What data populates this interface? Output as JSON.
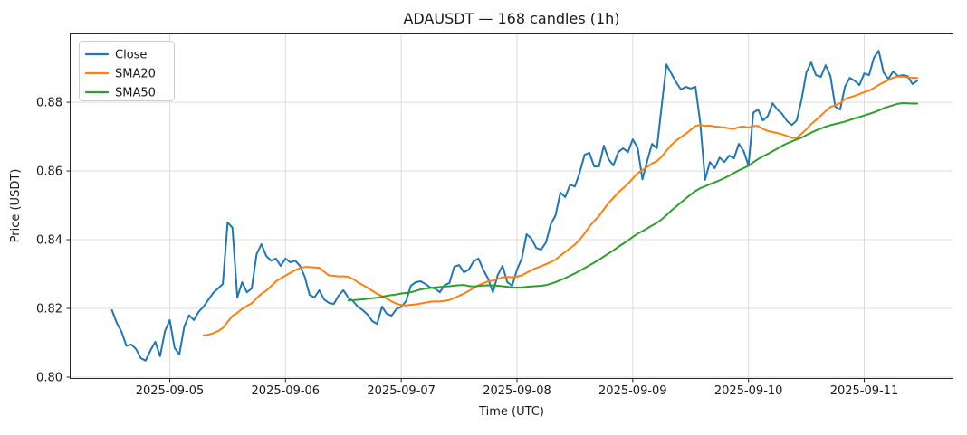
{
  "chart_data": {
    "type": "line",
    "title": "ADAUSDT — 168 candles (1h)",
    "xlabel": "Time (UTC)",
    "ylabel": "Price (USDT)",
    "symbol": "ADAUSDT",
    "candle_count": 168,
    "interval": "1h",
    "grid": true,
    "legend_position": "upper left",
    "legend_labels": [
      "Close",
      "SMA20",
      "SMA50"
    ],
    "colors": {
      "close": "#1f77b4",
      "sma20": "#ff7f0e",
      "sma50": "#2ca02c"
    },
    "xlim_hours": [
      -8.65,
      174.4
    ],
    "ylim": [
      0.7996,
      0.8999
    ],
    "x_ticks": [
      {
        "pos": 12,
        "label": "2025-09-05"
      },
      {
        "pos": 36,
        "label": "2025-09-06"
      },
      {
        "pos": 60,
        "label": "2025-09-07"
      },
      {
        "pos": 84,
        "label": "2025-09-08"
      },
      {
        "pos": 108,
        "label": "2025-09-09"
      },
      {
        "pos": 132,
        "label": "2025-09-10"
      },
      {
        "pos": 156,
        "label": "2025-09-11"
      }
    ],
    "y_ticks": [
      {
        "pos": 0.8,
        "label": "0.80"
      },
      {
        "pos": 0.82,
        "label": "0.82"
      },
      {
        "pos": 0.84,
        "label": "0.84"
      },
      {
        "pos": 0.86,
        "label": "0.86"
      },
      {
        "pos": 0.88,
        "label": "0.88"
      }
    ],
    "series": [
      {
        "name": "Close",
        "color": "#1f77b4",
        "kind": "raw"
      },
      {
        "name": "SMA20",
        "color": "#ff7f0e",
        "kind": "sma",
        "window": 20
      },
      {
        "name": "SMA50",
        "color": "#2ca02c",
        "kind": "sma",
        "window": 50
      }
    ],
    "close_values": [
      0.8195,
      0.8158,
      0.8132,
      0.8091,
      0.8095,
      0.8082,
      0.8055,
      0.8048,
      0.8078,
      0.8103,
      0.8061,
      0.8134,
      0.8166,
      0.8085,
      0.8066,
      0.8147,
      0.818,
      0.8166,
      0.819,
      0.8205,
      0.8225,
      0.8245,
      0.8258,
      0.8271,
      0.845,
      0.8435,
      0.8232,
      0.8276,
      0.8247,
      0.8258,
      0.8358,
      0.8387,
      0.8353,
      0.8339,
      0.8345,
      0.8324,
      0.8345,
      0.8334,
      0.8339,
      0.8324,
      0.8292,
      0.8239,
      0.8232,
      0.8253,
      0.8226,
      0.8216,
      0.8213,
      0.8237,
      0.8253,
      0.8232,
      0.8221,
      0.8205,
      0.8195,
      0.8182,
      0.8163,
      0.8155,
      0.8205,
      0.8184,
      0.8179,
      0.8198,
      0.8205,
      0.8221,
      0.8266,
      0.8276,
      0.8279,
      0.8271,
      0.8261,
      0.8258,
      0.8247,
      0.8268,
      0.8274,
      0.8321,
      0.8326,
      0.8305,
      0.8313,
      0.8337,
      0.8345,
      0.8313,
      0.8287,
      0.8247,
      0.8297,
      0.8324,
      0.8276,
      0.8266,
      0.8313,
      0.8345,
      0.8416,
      0.8403,
      0.8376,
      0.8371,
      0.8392,
      0.8445,
      0.8471,
      0.8537,
      0.8524,
      0.856,
      0.8555,
      0.8595,
      0.8647,
      0.8653,
      0.8613,
      0.8613,
      0.8674,
      0.8634,
      0.8616,
      0.8655,
      0.8666,
      0.8655,
      0.8692,
      0.8668,
      0.8576,
      0.8629,
      0.8679,
      0.8666,
      0.879,
      0.891,
      0.8884,
      0.8858,
      0.8837,
      0.8845,
      0.884,
      0.8845,
      0.874,
      0.8574,
      0.8626,
      0.8608,
      0.8639,
      0.8626,
      0.8645,
      0.8637,
      0.8679,
      0.8658,
      0.8616,
      0.877,
      0.8779,
      0.8747,
      0.876,
      0.8797,
      0.8779,
      0.8766,
      0.8745,
      0.8734,
      0.8747,
      0.8808,
      0.8887,
      0.8916,
      0.8879,
      0.8874,
      0.8908,
      0.8876,
      0.8787,
      0.8779,
      0.8845,
      0.8871,
      0.8863,
      0.885,
      0.8884,
      0.8879,
      0.8929,
      0.895,
      0.8887,
      0.8868,
      0.889,
      0.8876,
      0.8879,
      0.8876,
      0.8853,
      0.8863
    ]
  }
}
